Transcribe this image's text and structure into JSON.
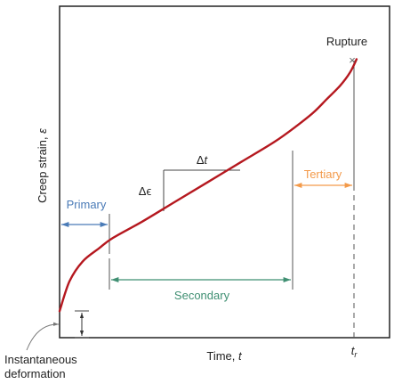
{
  "chart_data": {
    "type": "line",
    "title": "",
    "xlabel": "Time, t",
    "xlabel_parts": {
      "text": "Time, ",
      "symbol": "t"
    },
    "ylabel": "Creep strain, ε",
    "ylabel_parts": {
      "text": "Creep strain, ",
      "symbol": "ε"
    },
    "xlim": [
      0,
      1
    ],
    "ylim": [
      0,
      1
    ],
    "grid": false,
    "ticks": {
      "x": [],
      "y": []
    },
    "series": [
      {
        "color": "#b5181f",
        "x": [
          0.0,
          0.03,
          0.07,
          0.12,
          0.16,
          0.25,
          0.35,
          0.45,
          0.55,
          0.65,
          0.72,
          0.77,
          0.81,
          0.85,
          0.88,
          0.9
        ],
        "y": [
          0.08,
          0.17,
          0.23,
          0.27,
          0.3,
          0.35,
          0.41,
          0.47,
          0.53,
          0.59,
          0.64,
          0.68,
          0.72,
          0.76,
          0.8,
          0.84
        ]
      }
    ],
    "stages": {
      "instantaneous": {
        "label_line1": "Instantaneous",
        "label_line2": "deformation",
        "y_range": [
          0,
          0.08
        ]
      },
      "primary": {
        "label": "Primary",
        "x_range": [
          0,
          0.16
        ],
        "color": "#4a7bb7"
      },
      "secondary": {
        "label": "Secondary",
        "x_range": [
          0.16,
          0.78
        ],
        "color": "#3f8f72"
      },
      "tertiary": {
        "label": "Tertiary",
        "x_range": [
          0.78,
          0.9
        ],
        "color": "#f39a4a"
      }
    },
    "slope_triangle": {
      "delta_t": "Δt",
      "delta_t_parts": {
        "delta": "Δ",
        "symbol": "t"
      },
      "delta_eps": "Δϵ",
      "x_range": [
        0.33,
        0.57
      ],
      "y_range": [
        0.4,
        0.54
      ]
    },
    "rupture": {
      "label": "Rupture",
      "marker": "×",
      "x": 0.9,
      "y": 0.84
    },
    "t_r": {
      "label": "tr",
      "symbol": "t",
      "subscript": "r",
      "x": 0.9
    }
  }
}
